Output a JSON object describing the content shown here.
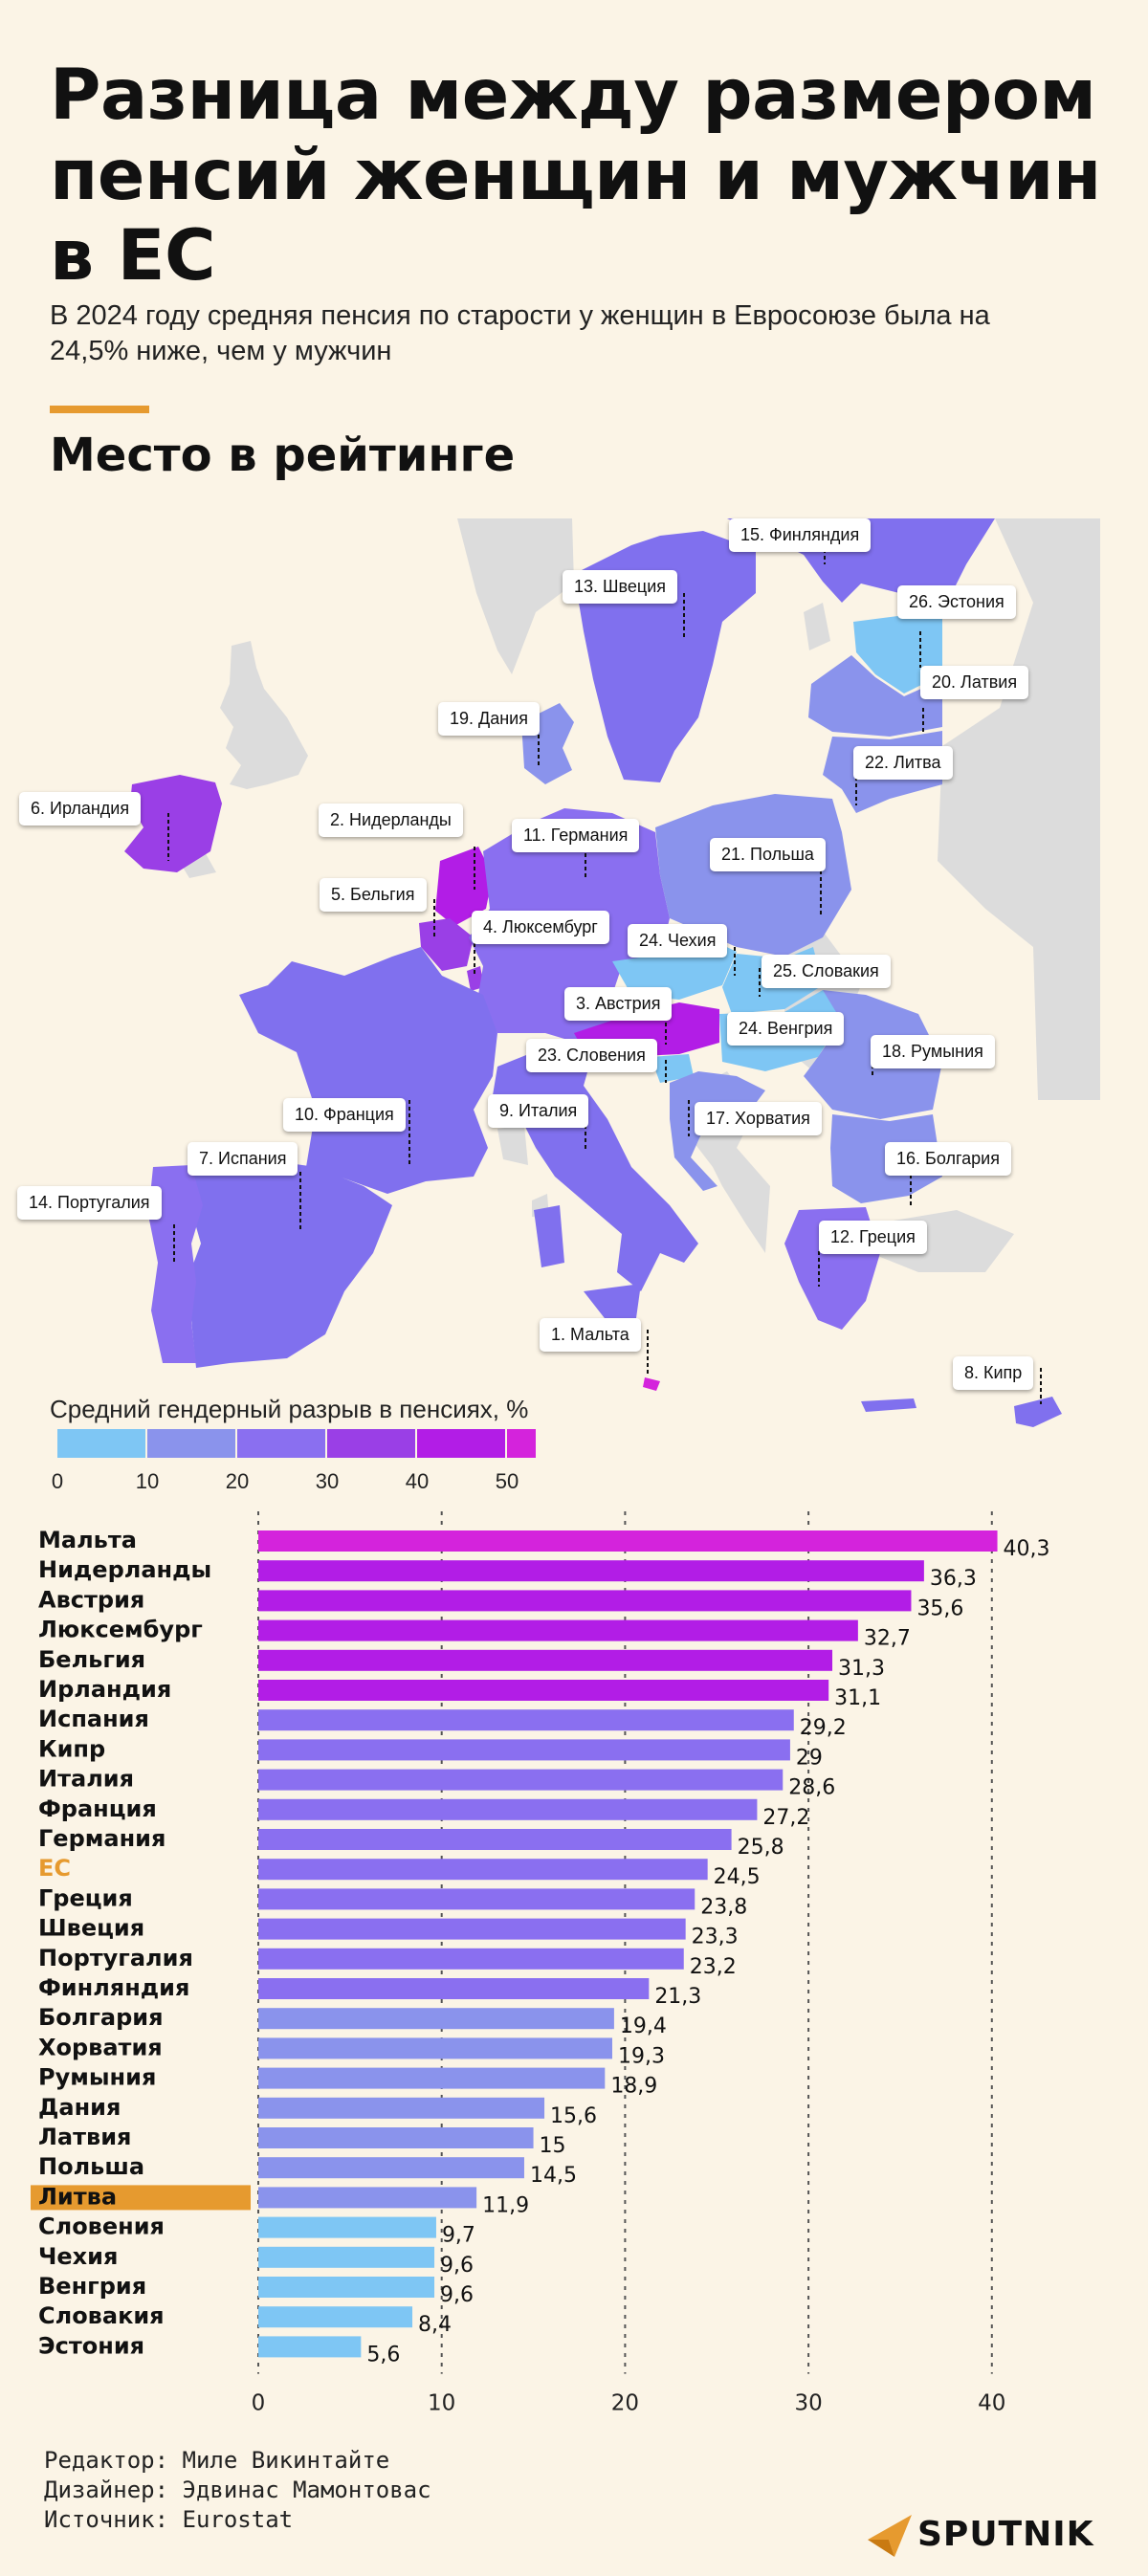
{
  "title": "Разница между размером пенсий женщин и мужчин в ЕС",
  "subtitle": "В 2024 году средняя пенсия по старости у женщин в Евросоюзе была на 24,5% ниже, чем у мужчин",
  "section_title": "Место в рейтинге",
  "map_labels": [
    {
      "text": "15. Финляндия",
      "value": 21.3
    },
    {
      "text": "13. Швеция",
      "value": 23.3
    },
    {
      "text": "26. Эстония",
      "value": 5.6
    },
    {
      "text": "20. Латвия",
      "value": 15
    },
    {
      "text": "19. Дания",
      "value": 15.6
    },
    {
      "text": "22. Литва",
      "value": 11.9
    },
    {
      "text": "6. Ирландия",
      "value": 31.1
    },
    {
      "text": "2. Нидерланды",
      "value": 36.3
    },
    {
      "text": "11. Германия",
      "value": 25.8
    },
    {
      "text": "21. Польша",
      "value": 14.5
    },
    {
      "text": "5. Бельгия",
      "value": 31.3
    },
    {
      "text": "4. Люксембург",
      "value": 32.7
    },
    {
      "text": "24. Чехия",
      "value": 9.6
    },
    {
      "text": "25. Словакия",
      "value": 8.4
    },
    {
      "text": "3. Австрия",
      "value": 35.6
    },
    {
      "text": "24. Венгрия",
      "value": 9.6
    },
    {
      "text": "18. Румыния",
      "value": 18.9
    },
    {
      "text": "23. Словения",
      "value": 9.7
    },
    {
      "text": "17. Хорватия",
      "value": 19.3
    },
    {
      "text": "10. Франция",
      "value": 27.2
    },
    {
      "text": "9. Италия",
      "value": 28.6
    },
    {
      "text": "16. Болгария",
      "value": 19.4
    },
    {
      "text": "7. Испания",
      "value": 29.2
    },
    {
      "text": "14. Португалия",
      "value": 23.2
    },
    {
      "text": "12. Греция",
      "value": 23.8
    },
    {
      "text": "1. Мальта",
      "value": 40.3
    },
    {
      "text": "8. Кипр",
      "value": 29
    }
  ],
  "legend": {
    "title": "Средний гендерный разрыв в пенсиях, %",
    "ticks": [
      "0",
      "10",
      "20",
      "30",
      "40",
      "50"
    ],
    "colors": [
      "#7ec6f4",
      "#8a93ec",
      "#8a6ff0",
      "#9a3fe6",
      "#b21de6",
      "#d423dc"
    ]
  },
  "colors": {
    "eu_label": "#e69a2f",
    "highlight_bg": "#e69a2f",
    "non_eu": "#dcdcdc"
  },
  "chart_data": {
    "type": "bar",
    "orientation": "horizontal",
    "title": "Средний гендерный разрыв в пенсиях, %",
    "categories": [
      "Мальта",
      "Нидерланды",
      "Австрия",
      "Люксембург",
      "Бельгия",
      "Ирландия",
      "Испания",
      "Кипр",
      "Италия",
      "Франция",
      "Германия",
      "ЕС",
      "Греция",
      "Швеция",
      "Португалия",
      "Финляндия",
      "Болгария",
      "Хорватия",
      "Румыния",
      "Дания",
      "Латвия",
      "Польша",
      "Литва",
      "Словения",
      "Чехия",
      "Венгрия",
      "Словакия",
      "Эстония"
    ],
    "values": [
      40.3,
      36.3,
      35.6,
      32.7,
      31.3,
      31.1,
      29.2,
      29,
      28.6,
      27.2,
      25.8,
      24.5,
      23.8,
      23.3,
      23.2,
      21.3,
      19.4,
      19.3,
      18.9,
      15.6,
      15,
      14.5,
      11.9,
      9.7,
      9.6,
      9.6,
      8.4,
      5.6
    ],
    "value_labels": [
      "40,3",
      "36,3",
      "35,6",
      "32,7",
      "31,3",
      "31,1",
      "29,2",
      "29",
      "28,6",
      "27,2",
      "25,8",
      "24,5",
      "23,8",
      "23,3",
      "23,2",
      "21,3",
      "19,4",
      "19,3",
      "18,9",
      "15,6",
      "15",
      "14,5",
      "11,9",
      "9,7",
      "9,6",
      "9,6",
      "8,4",
      "5,6"
    ],
    "xlim": [
      0,
      40
    ],
    "xticks": [
      "0",
      "10",
      "20",
      "30",
      "40"
    ],
    "eu_label": "ЕС",
    "highlighted": "Литва"
  },
  "credits": {
    "editor": "Редактор: Миле Викинтайте",
    "designer": "Дизайнер: Эдвинас Мамонтовас",
    "source": "Источник: Eurostat"
  },
  "logo": "SPUTNIK"
}
